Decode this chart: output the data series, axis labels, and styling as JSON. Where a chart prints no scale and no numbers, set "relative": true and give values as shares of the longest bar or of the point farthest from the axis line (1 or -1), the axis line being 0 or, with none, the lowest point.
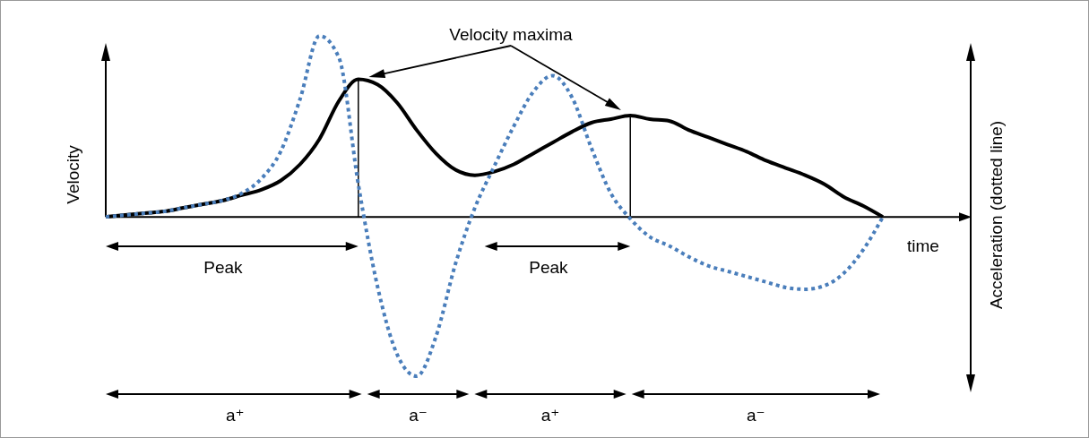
{
  "chart_data": {
    "type": "line",
    "relative": true,
    "xlabel": "time",
    "ylabel": "Velocity",
    "categories": [
      null,
      null,
      null,
      null,
      null,
      null,
      null,
      null,
      null,
      null,
      null,
      null,
      null,
      null,
      null,
      null,
      null,
      null,
      null,
      null,
      null,
      null,
      null,
      null,
      null,
      null,
      null,
      null,
      null,
      null,
      null,
      null,
      null,
      null,
      null,
      null,
      null,
      null,
      null,
      null,
      null
    ],
    "series": [
      {
        "color": "#000000",
        "line_style": "solid",
        "values": [
          0,
          0.01,
          0.02,
          0.03,
          0.05,
          0.07,
          0.09,
          0.12,
          0.15,
          0.2,
          0.29,
          0.43,
          0.64,
          0.76,
          0.73,
          0.63,
          0.48,
          0.35,
          0.26,
          0.23,
          0.25,
          0.29,
          0.35,
          0.41,
          0.47,
          0.52,
          0.54,
          0.56,
          0.54,
          0.53,
          0.48,
          0.44,
          0.4,
          0.36,
          0.31,
          0.27,
          0.23,
          0.18,
          0.11,
          0.06,
          0
        ]
      },
      {
        "color": "#4a7ebb",
        "line_style": "dotted",
        "values": [
          0,
          0.01,
          0.02,
          0.03,
          0.05,
          0.07,
          0.09,
          0.13,
          0.21,
          0.36,
          0.65,
          1,
          0.88,
          0.18,
          -0.39,
          -0.76,
          -0.88,
          -0.66,
          -0.26,
          0.05,
          0.28,
          0.5,
          0.69,
          0.78,
          0.66,
          0.38,
          0.13,
          -0.01,
          -0.11,
          -0.16,
          -0.22,
          -0.27,
          -0.3,
          -0.33,
          -0.36,
          -0.39,
          -0.4,
          -0.38,
          -0.31,
          -0.18,
          0
        ]
      }
    ],
    "annotations": [
      "Velocity maxima",
      "Peak",
      "Peak",
      "a⁺",
      "a⁻",
      "a⁺",
      "a⁻",
      "Acceleration (dotted line)"
    ]
  }
}
